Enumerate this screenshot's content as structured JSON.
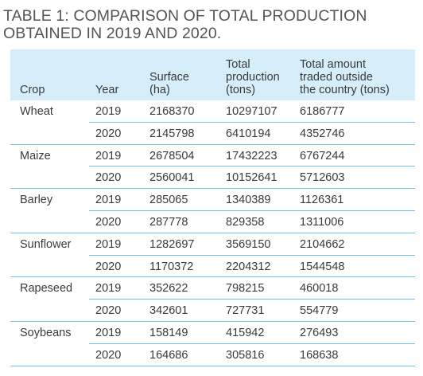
{
  "title": "TABLE 1: COMPARISON OF TOTAL PRODUCTION\nOBTAINED IN 2019 AND 2020.",
  "headers": {
    "crop": "Crop",
    "year": "Year",
    "surface": "Surface\n(ha)",
    "total_production": "Total\nproduction\n(tons)",
    "traded": "Total amount\ntraded outside\nthe country (tons)"
  },
  "rows": [
    {
      "crop": "Wheat",
      "year": "2019",
      "surface": "2168370",
      "production": "10297107",
      "traded": "6186777"
    },
    {
      "crop": "",
      "year": "2020",
      "surface": "2145798",
      "production": "6410194",
      "traded": "4352746"
    },
    {
      "crop": "Maize",
      "year": "2019",
      "surface": "2678504",
      "production": "17432223",
      "traded": "6767244"
    },
    {
      "crop": "",
      "year": "2020",
      "surface": "2560041",
      "production": "10152641",
      "traded": "5712603"
    },
    {
      "crop": "Barley",
      "year": "2019",
      "surface": "285065",
      "production": "1340389",
      "traded": "1126361"
    },
    {
      "crop": "",
      "year": "2020",
      "surface": "287778",
      "production": "829358",
      "traded": "1311006"
    },
    {
      "crop": "Sunflower",
      "year": "2019",
      "surface": "1282697",
      "production": "3569150",
      "traded": "2104662"
    },
    {
      "crop": "",
      "year": "2020",
      "surface": "1170372",
      "production": "2204312",
      "traded": "1544548"
    },
    {
      "crop": "Rapeseed",
      "year": "2019",
      "surface": "352622",
      "production": "798215",
      "traded": "460018"
    },
    {
      "crop": "",
      "year": "2020",
      "surface": "342601",
      "production": "727731",
      "traded": "554779"
    },
    {
      "crop": "Soybeans",
      "year": "2019",
      "surface": "158149",
      "production": "415942",
      "traded": "276493"
    },
    {
      "crop": "",
      "year": "2020",
      "surface": "164686",
      "production": "305816",
      "traded": "168638"
    }
  ],
  "colors": {
    "header_bg": "#d5eef9",
    "rule": "#6fc1e6",
    "text": "#3a3a3a"
  }
}
